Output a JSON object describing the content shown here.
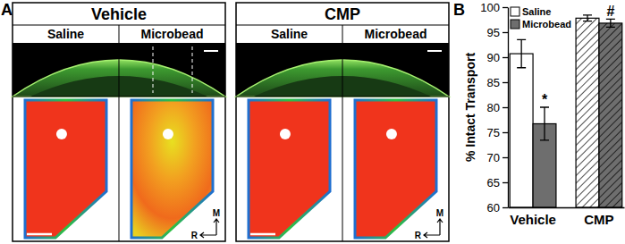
{
  "chart_data": {
    "type": "bar",
    "panel_label": "B",
    "ylabel": "% Intact Transport",
    "categories": [
      "Vehicle",
      "CMP"
    ],
    "series": [
      {
        "name": "Saline",
        "color": "#ffffff",
        "values": [
          90.7,
          97.8
        ],
        "errors": [
          2.8,
          0.6
        ]
      },
      {
        "name": "Microbead",
        "color": "#6e6e6e",
        "values": [
          76.7,
          96.8
        ],
        "errors": [
          3.3,
          0.8
        ]
      }
    ],
    "ylim": [
      60,
      100
    ],
    "yticks": [
      60,
      65,
      70,
      75,
      80,
      85,
      90,
      95,
      100
    ],
    "grid": false,
    "legend": "upper left",
    "annotations": [
      {
        "text": "*",
        "category": "Vehicle",
        "series": "Microbead"
      },
      {
        "text": "#",
        "category": "CMP",
        "series": "Microbead"
      }
    ]
  },
  "panel_a": {
    "panel_label": "A",
    "panels": [
      {
        "title": "Vehicle",
        "columns": [
          "Saline",
          "Microbead"
        ],
        "compass": [
          "M",
          "R"
        ]
      },
      {
        "title": "CMP",
        "columns": [
          "Saline",
          "Microbead"
        ],
        "compass": [
          "M",
          "R"
        ]
      }
    ]
  }
}
